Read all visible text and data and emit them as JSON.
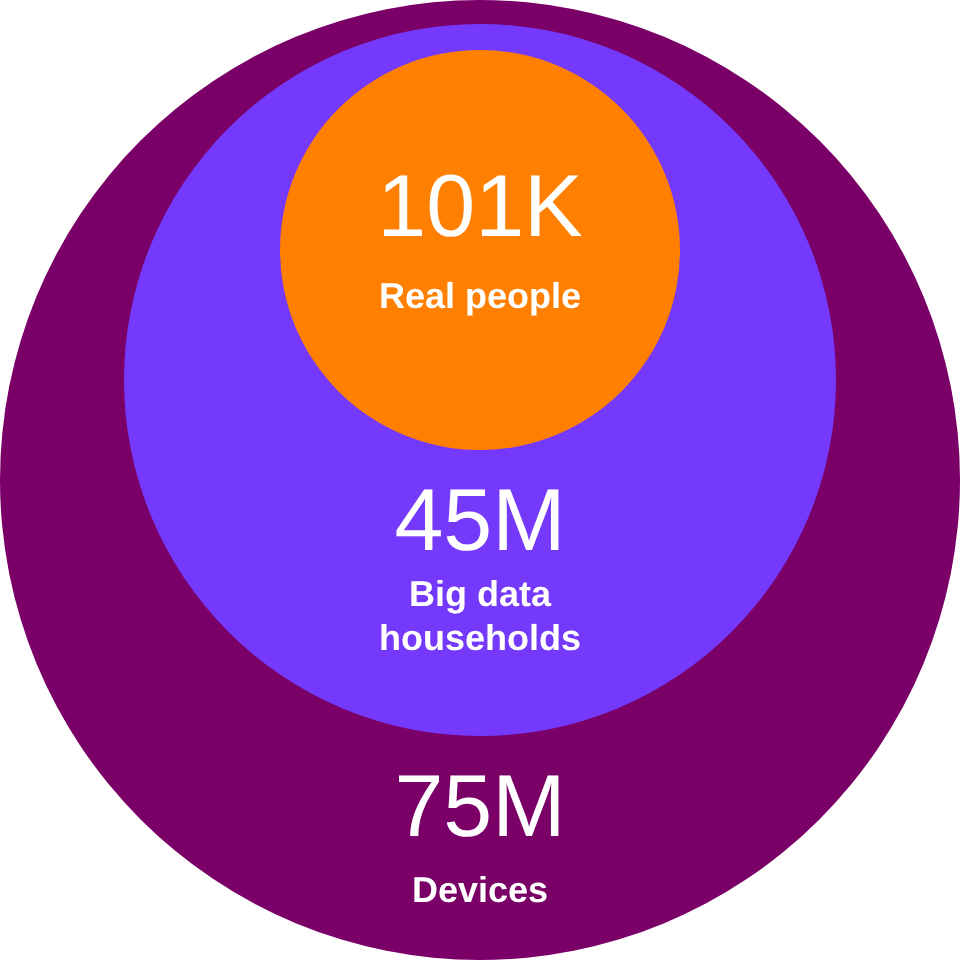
{
  "chart_data": {
    "type": "other",
    "categories": [
      "Devices",
      "Big data households",
      "Real people"
    ],
    "values": [
      75000000,
      45000000,
      101000
    ],
    "value_labels": [
      "75M",
      "45M",
      "101K"
    ],
    "colors": [
      "#7a0068",
      "#7439fb",
      "#ff7f00"
    ]
  }
}
